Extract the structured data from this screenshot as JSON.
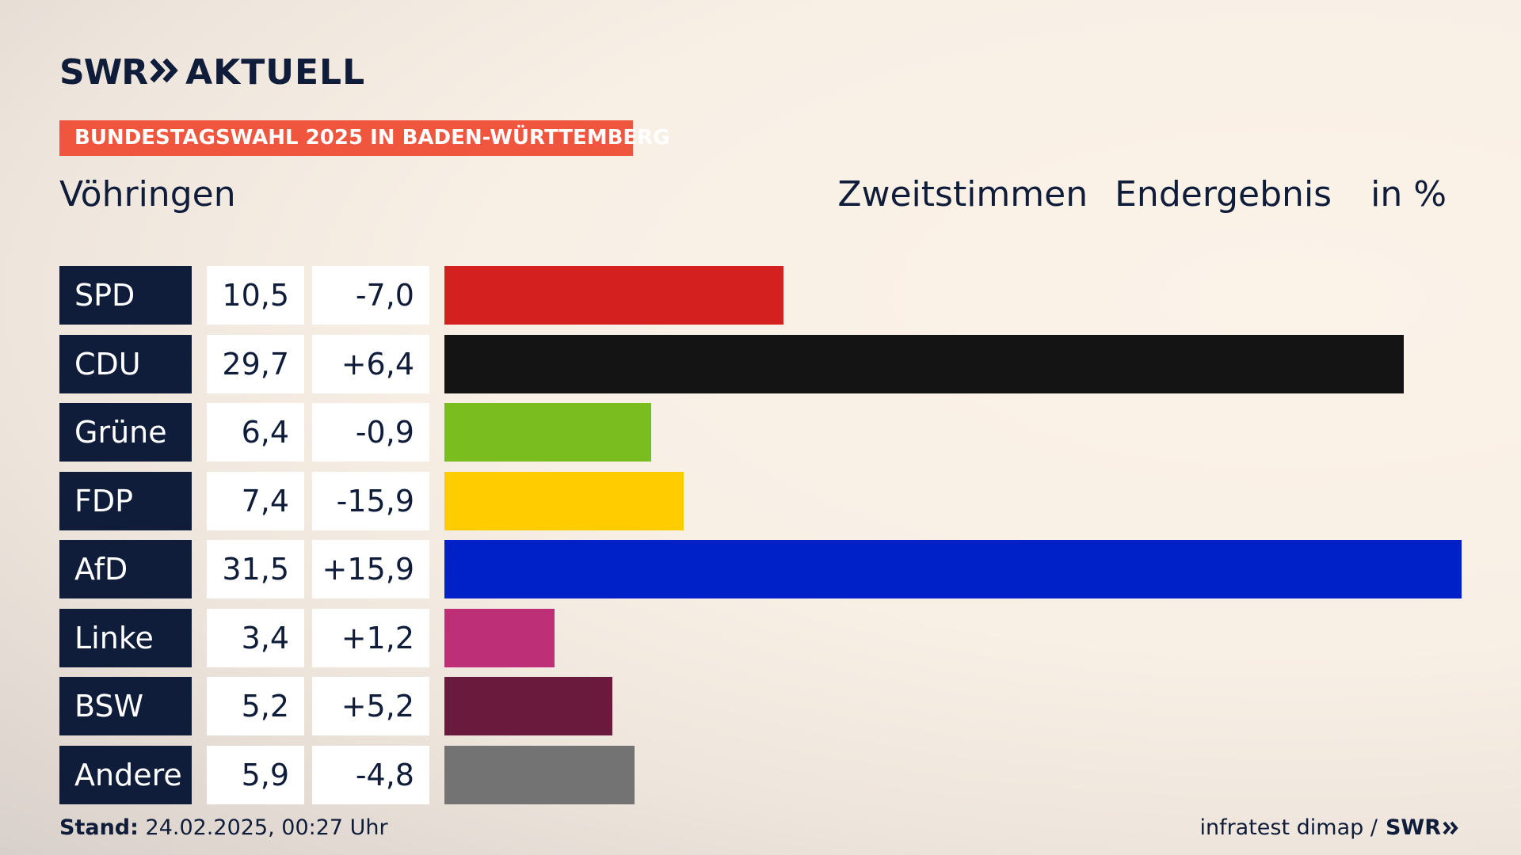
{
  "brand": {
    "logo_left": "SWR",
    "logo_right": "AKTUELL",
    "logo_arrows_icon": "double-chevron-right-icon"
  },
  "banner": {
    "text": "BUNDESTAGSWAHL 2025 IN BADEN-WÜRTTEMBERG",
    "color": "#f0553e"
  },
  "header": {
    "place": "Vöhringen",
    "vote_type": "Zweitstimmen",
    "result_state": "Endergebnis",
    "unit": "in %"
  },
  "chart_data": {
    "type": "bar",
    "orientation": "horizontal",
    "categories": [
      "SPD",
      "CDU",
      "Grüne",
      "FDP",
      "AfD",
      "Linke",
      "BSW",
      "Andere"
    ],
    "values": [
      10.5,
      29.7,
      6.4,
      7.4,
      31.5,
      3.4,
      5.2,
      5.9
    ],
    "value_labels": [
      "10,5",
      "29,7",
      "6,4",
      "7,4",
      "31,5",
      "3,4",
      "5,2",
      "5,9"
    ],
    "diff_labels": [
      "-7,0",
      "+6,4",
      "-0,9",
      "-15,9",
      "+15,9",
      "+1,2",
      "+5,2",
      "-4,8"
    ],
    "colors": [
      "#d52020",
      "#141414",
      "#7abd1e",
      "#ffcc00",
      "#0021c8",
      "#bd3078",
      "#6a1a3d",
      "#737373"
    ],
    "xlim": [
      0,
      31.5
    ],
    "grid": false,
    "legend": "none"
  },
  "footer": {
    "stand_label": "Stand:",
    "stand_value": "24.02.2025, 00:27 Uhr",
    "source": "infratest dimap /",
    "source_logo": "SWR"
  }
}
